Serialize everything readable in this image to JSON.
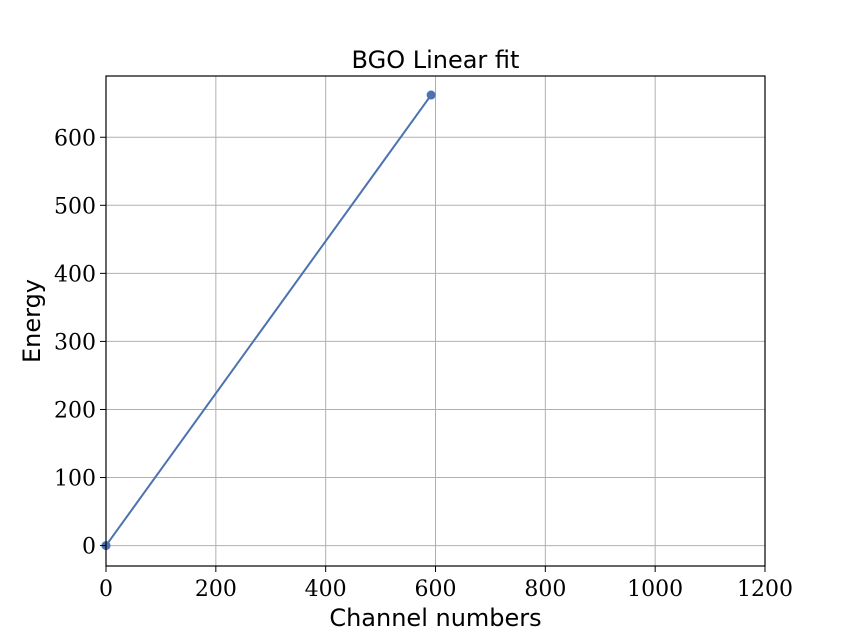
{
  "chart_data": {
    "type": "line",
    "title": "BGO Linear fit",
    "xlabel": "Channel numbers",
    "ylabel": "Energy",
    "xlim": [
      0,
      1200
    ],
    "ylim": [
      -30,
      690
    ],
    "xticks": [
      0,
      200,
      400,
      600,
      800,
      1000,
      1200
    ],
    "yticks": [
      0,
      100,
      200,
      300,
      400,
      500,
      600
    ],
    "grid": true,
    "series": [
      {
        "color": "#4c72b0",
        "points": [
          {
            "x": 0,
            "y": 0
          },
          {
            "x": 592,
            "y": 662
          }
        ]
      }
    ]
  }
}
